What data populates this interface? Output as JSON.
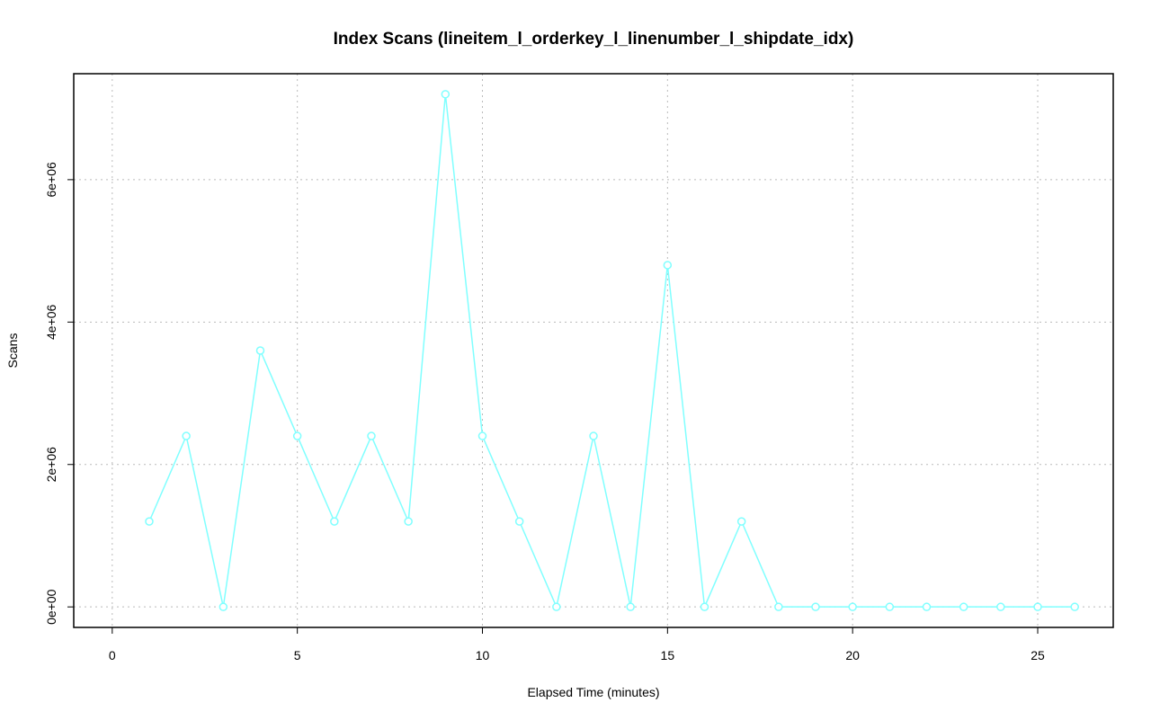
{
  "chart_data": {
    "type": "line",
    "title": "Index Scans (lineitem_l_orderkey_l_linenumber_l_shipdate_idx)",
    "x_label": "Elapsed Time (minutes)",
    "y_label": "Scans",
    "x": [
      1,
      2,
      3,
      4,
      5,
      6,
      7,
      8,
      9,
      10,
      11,
      12,
      13,
      14,
      15,
      16,
      17,
      18,
      19,
      20,
      21,
      22,
      23,
      24,
      25,
      26
    ],
    "series": [
      {
        "color": "#80ffff",
        "values": [
          1200000,
          2400000,
          0,
          3600000,
          2400000,
          1200000,
          2400000,
          1200000,
          7200000,
          2400000,
          1200000,
          0,
          2400000,
          0,
          4800000,
          0,
          1200000,
          0,
          0,
          0,
          0,
          0,
          0,
          0,
          0,
          0
        ]
      }
    ],
    "xlim": [
      -1.04,
      27.04
    ],
    "xticks": [
      0,
      5,
      10,
      15,
      20,
      25
    ],
    "ylim": [
      -288000,
      7488000
    ],
    "yticks": [
      {
        "value": 0,
        "label": "0e+00"
      },
      {
        "value": 2000000,
        "label": "2e+06"
      },
      {
        "value": 4000000,
        "label": "4e+06"
      },
      {
        "value": 6000000,
        "label": "6e+06"
      }
    ],
    "grid": true
  }
}
